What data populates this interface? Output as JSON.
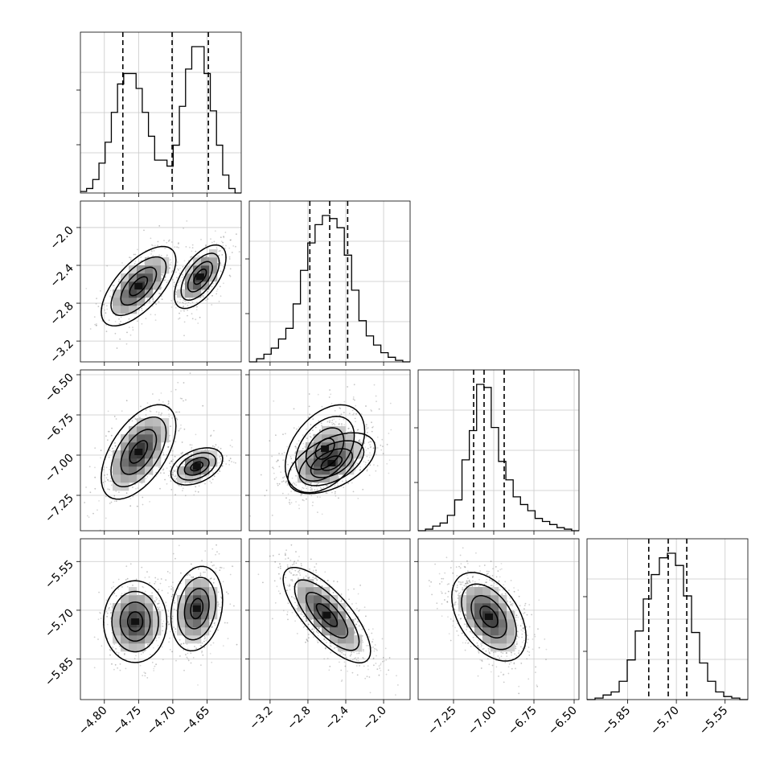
{
  "chart_data": {
    "type": "corner",
    "grid": true,
    "legend": "none",
    "parameters": [
      {
        "range": [
          -4.835,
          -4.6
        ],
        "ticks": [
          "-4.80",
          "-4.75",
          "-4.70",
          "-4.65"
        ],
        "tick_values": [
          -4.8,
          -4.75,
          -4.7,
          -4.65
        ],
        "quantiles": [
          -4.773,
          -4.701,
          -4.648
        ],
        "hist_counts": [
          1,
          3,
          9,
          20,
          34,
          54,
          73,
          80,
          80,
          70,
          54,
          38,
          22,
          22,
          18,
          32,
          58,
          83,
          98,
          98,
          80,
          55,
          32,
          12,
          3,
          0
        ]
      },
      {
        "range": [
          -3.42,
          -1.72
        ],
        "ticks": [
          "-3.2",
          "-2.8",
          "-2.4",
          "-2.0"
        ],
        "tick_values": [
          -3.2,
          -2.8,
          -2.4,
          -2.0
        ],
        "ylabels": [
          "-2.0",
          "-2.4",
          "-2.8",
          "-3.2"
        ],
        "quantiles": [
          -2.78,
          -2.57,
          -2.38
        ],
        "hist_counts": [
          0,
          2,
          5,
          9,
          15,
          22,
          38,
          60,
          78,
          90,
          96,
          94,
          88,
          70,
          47,
          27,
          17,
          11,
          6,
          3,
          1,
          0
        ],
        "yticks_hist_pos": [
          0.25,
          0.5,
          0.75
        ]
      },
      {
        "range": [
          -7.47,
          -6.47
        ],
        "ticks": [
          "-7.25",
          "-7.00",
          "-6.75",
          "-6.50"
        ],
        "tick_values": [
          -7.25,
          -7.0,
          -6.75,
          -6.5
        ],
        "ylabels": [
          "-6.50",
          "-6.75",
          "-7.00",
          "-7.25"
        ],
        "quantiles": [
          -7.125,
          -7.06,
          -6.935
        ],
        "hist_counts": [
          0,
          1,
          3,
          5,
          10,
          20,
          46,
          65,
          95,
          93,
          67,
          45,
          33,
          22,
          17,
          13,
          8,
          6,
          4,
          2,
          1,
          0
        ]
      },
      {
        "range": [
          -5.975,
          -5.48
        ],
        "ticks": [
          "-5.85",
          "-5.70",
          "-5.55"
        ],
        "tick_values": [
          -5.85,
          -5.7,
          -5.55
        ],
        "ylabels": [
          "-5.55",
          "-5.70",
          "-5.85"
        ],
        "quantiles": [
          -5.785,
          -5.725,
          -5.668
        ],
        "hist_counts": [
          0,
          1,
          3,
          5,
          12,
          26,
          45,
          66,
          82,
          93,
          96,
          88,
          68,
          44,
          24,
          12,
          5,
          2,
          1,
          0
        ]
      }
    ],
    "pairs": [
      {
        "row": 1,
        "col": 0,
        "label": "p1-vs-p0",
        "modes": [
          {
            "x": -4.75,
            "y": -2.62,
            "sx": 0.026,
            "sy": 0.2,
            "r": 0.65,
            "w": 0.5
          },
          {
            "x": -4.66,
            "y": -2.52,
            "sx": 0.018,
            "sy": 0.16,
            "r": 0.6,
            "w": 0.5
          }
        ]
      },
      {
        "row": 2,
        "col": 0,
        "label": "p2-vs-p0",
        "modes": [
          {
            "x": -4.75,
            "y": -6.98,
            "sx": 0.026,
            "sy": 0.14,
            "r": 0.55,
            "w": 0.5
          },
          {
            "x": -4.665,
            "y": -7.07,
            "sx": 0.018,
            "sy": 0.055,
            "r": 0.4,
            "w": 0.5
          }
        ]
      },
      {
        "row": 2,
        "col": 1,
        "label": "p2-vs-p1",
        "modes": [
          {
            "x": -2.55,
            "y": -7.05,
            "sx": 0.22,
            "sy": 0.09,
            "r": 0.5,
            "w": 0.55
          },
          {
            "x": -2.62,
            "y": -6.96,
            "sx": 0.2,
            "sy": 0.13,
            "r": 0.4,
            "w": 0.45
          }
        ]
      },
      {
        "row": 2,
        "col": 2,
        "label": "p2-vs-p2",
        "modes": []
      },
      {
        "row": 3,
        "col": 0,
        "label": "p3-vs-p0",
        "modes": [
          {
            "x": -4.755,
            "y": -5.735,
            "sx": 0.022,
            "sy": 0.06,
            "r": 0.0,
            "w": 0.5
          },
          {
            "x": -4.665,
            "y": -5.695,
            "sx": 0.018,
            "sy": 0.062,
            "r": 0.2,
            "w": 0.5
          }
        ]
      },
      {
        "row": 3,
        "col": 1,
        "label": "p3-vs-p1",
        "modes": [
          {
            "x": -2.6,
            "y": -5.715,
            "sx": 0.22,
            "sy": 0.07,
            "r": -0.75,
            "w": 1.0
          }
        ]
      },
      {
        "row": 3,
        "col": 2,
        "label": "p3-vs-p2",
        "modes": [
          {
            "x": -7.03,
            "y": -5.72,
            "sx": 0.11,
            "sy": 0.065,
            "r": -0.45,
            "w": 1.0
          }
        ]
      }
    ]
  }
}
